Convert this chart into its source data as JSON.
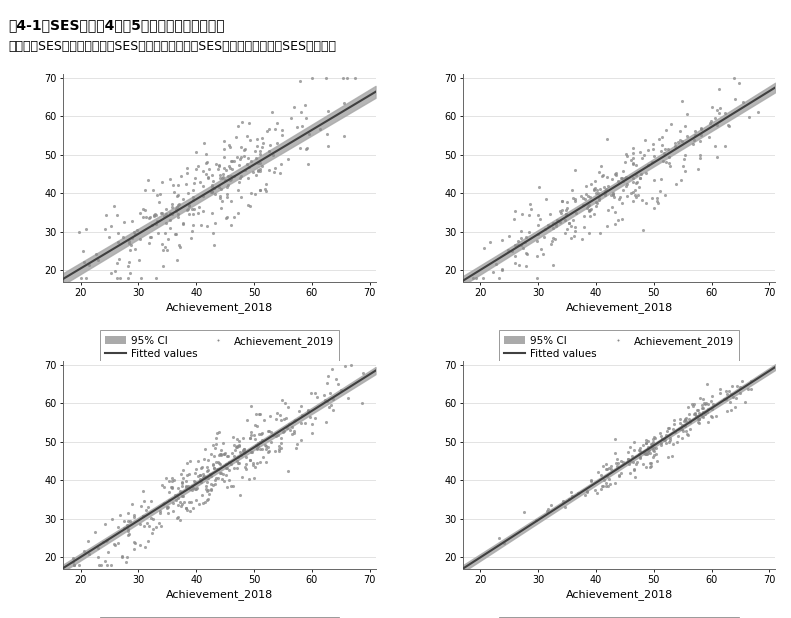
{
  "title": "図4-1．SES別、小4と小5の学力スコアの散布図",
  "subtitle": "（左上：SES下位層、右上：SES中の下層、左下：SES中の上層、右下：SES上位層）",
  "xlabel": "Achievement_2018",
  "xlim": [
    17,
    71
  ],
  "ylim": [
    17,
    71
  ],
  "xticks": [
    20,
    30,
    40,
    50,
    60,
    70
  ],
  "yticks": [
    20,
    30,
    40,
    50,
    60,
    70
  ],
  "panels": [
    {
      "seed": 42,
      "n": 300,
      "slope": 0.9,
      "intercept": 2.5,
      "scatter": 6.0,
      "xmean": 42,
      "xstd": 11,
      "ci_half": 1.2
    },
    {
      "seed": 123,
      "n": 280,
      "slope": 0.93,
      "intercept": 1.5,
      "scatter": 5.0,
      "xmean": 43,
      "xstd": 12,
      "ci_half": 0.9
    },
    {
      "seed": 7,
      "n": 380,
      "slope": 0.95,
      "intercept": 1.0,
      "scatter": 3.8,
      "xmean": 44,
      "xstd": 11,
      "ci_half": 0.6
    },
    {
      "seed": 99,
      "n": 220,
      "slope": 0.97,
      "intercept": 0.5,
      "scatter": 2.2,
      "xmean": 51,
      "xstd": 9,
      "ci_half": 0.5
    }
  ],
  "dot_color": "#888888",
  "line_color": "#404040",
  "ci_color": "#aaaaaa",
  "dot_size": 5,
  "dot_alpha": 0.75,
  "line_width": 1.5,
  "legend_95ci_label": "95% CI",
  "legend_fitted_label": "Fitted values",
  "legend_scatter_label": "Achievement_2019",
  "title_fontsize": 10,
  "subtitle_fontsize": 9,
  "axis_label_fontsize": 8,
  "tick_fontsize": 7,
  "legend_fontsize": 7.5
}
